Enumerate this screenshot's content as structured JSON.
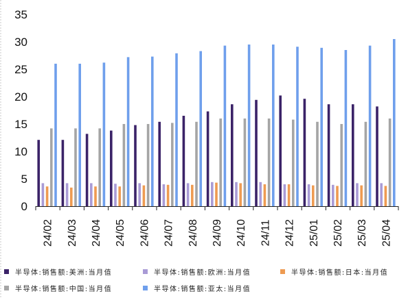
{
  "chart_data": {
    "type": "bar",
    "categories": [
      "24/02",
      "24/03",
      "24/04",
      "24/05",
      "24/06",
      "24/07",
      "24/08",
      "24/09",
      "24/10",
      "24/11",
      "24/12",
      "25/01",
      "25/02",
      "25/03",
      "25/04"
    ],
    "series": [
      {
        "name": "半导体:销售额:美洲:当月值",
        "color": "#3b2368",
        "values": [
          12.1,
          12.1,
          13.2,
          13.8,
          14.8,
          15.4,
          16.5,
          17.3,
          18.6,
          19.4,
          20.2,
          19.6,
          18.6,
          18.6,
          18.2
        ]
      },
      {
        "name": "半导体:销售额:欧洲:当月值",
        "color": "#a99bd6",
        "values": [
          4.2,
          4.2,
          4.2,
          4.1,
          4.2,
          4.0,
          4.2,
          4.4,
          4.4,
          4.4,
          4.0,
          4.0,
          3.9,
          4.2,
          4.2
        ]
      },
      {
        "name": "半导体:销售额:日本:当月值",
        "color": "#ee9b52",
        "values": [
          3.6,
          3.4,
          3.6,
          3.6,
          3.8,
          3.9,
          3.9,
          4.3,
          4.2,
          4.0,
          4.0,
          3.8,
          3.7,
          3.8,
          3.7
        ]
      },
      {
        "name": "半导体:销售额:中国:当月值",
        "color": "#a5a5a5",
        "values": [
          14.2,
          14.2,
          14.2,
          15.0,
          15.0,
          15.2,
          15.4,
          16.0,
          16.0,
          16.0,
          15.8,
          15.4,
          15.0,
          15.4,
          16.0
        ]
      },
      {
        "name": "半导体:销售额:亚太:当月值",
        "color": "#6f9fec",
        "values": [
          26.0,
          26.0,
          26.2,
          27.2,
          27.3,
          27.9,
          28.3,
          29.3,
          29.5,
          29.5,
          29.1,
          28.9,
          28.5,
          29.3,
          30.5
        ]
      }
    ],
    "y_ticks": [
      0,
      5,
      10,
      15,
      20,
      25,
      30,
      35
    ],
    "ylim": [
      0,
      35
    ],
    "grid": false,
    "legend_position": "bottom"
  }
}
